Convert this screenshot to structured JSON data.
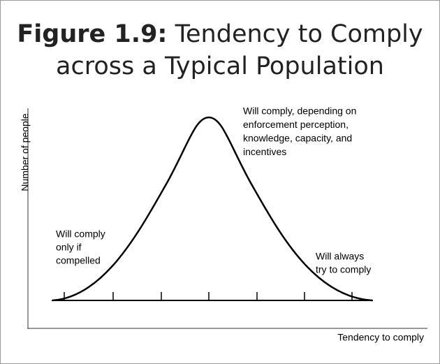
{
  "title": {
    "label": "Figure 1.9:",
    "text": "Tendency to Comply across a Typical Population"
  },
  "y_axis_label": "Number of people",
  "x_axis_label": "Tendency to comply",
  "annotations": [
    {
      "lines": [
        "Will comply, depending on",
        "enforcement perception,",
        "knowledge, capacity, and",
        "incentives"
      ]
    },
    {
      "lines": [
        "Will comply",
        "only if",
        "compelled"
      ]
    },
    {
      "lines": [
        "Will always",
        "try to comply"
      ]
    }
  ]
}
